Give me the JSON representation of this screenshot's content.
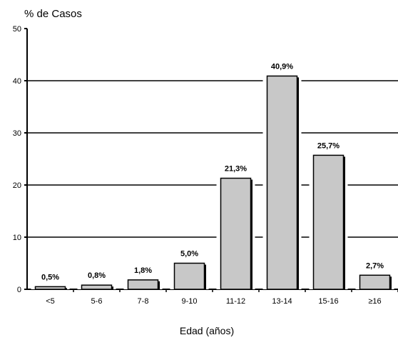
{
  "chart_data": {
    "type": "bar",
    "title": "",
    "ylabel": "% de Casos",
    "xlabel": "Edad (años)",
    "ylim": [
      0,
      50
    ],
    "yticks": [
      0,
      10,
      20,
      30,
      40,
      50
    ],
    "grid": true,
    "categories": [
      "<5",
      "5-6",
      "7-8",
      "9-10",
      "11-12",
      "13-14",
      "15-16",
      "≥16"
    ],
    "values": [
      0.5,
      0.8,
      1.8,
      5.0,
      21.3,
      40.9,
      25.7,
      2.7
    ],
    "data_labels": [
      "0,5%",
      "0,8%",
      "1,8%",
      "5,0%",
      "21,3%",
      "40,9%",
      "25,7%",
      "2,7%"
    ],
    "bar_color": "#c8c8c8",
    "bar_stroke": "#000000"
  }
}
